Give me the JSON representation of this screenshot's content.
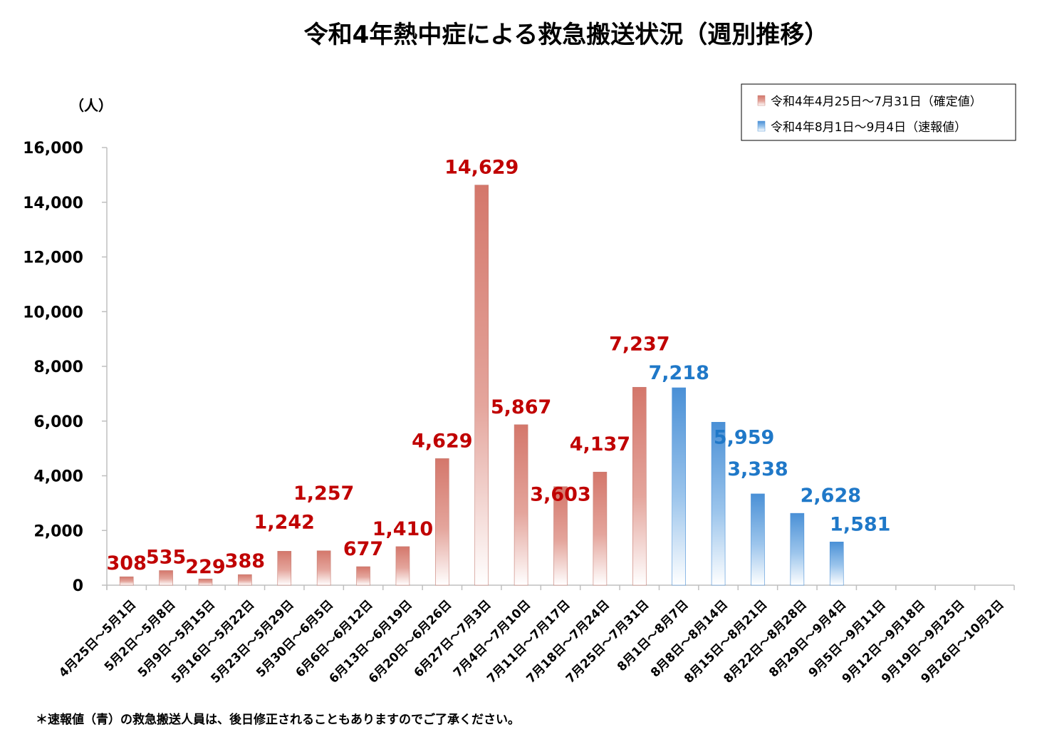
{
  "colors": {
    "confirmed_bar": "#d98b80",
    "confirmed_label": "#c00000",
    "preliminary_bar": "#5b9bd5",
    "preliminary_label": "#1f78c8",
    "axis": "#bfbfbf"
  },
  "chart_data": {
    "type": "bar",
    "title": "令和4年熱中症による救急搬送状況（週別推移）",
    "ylabel": "（人）",
    "ylim": [
      0,
      16000
    ],
    "yticks": [
      "0",
      "2,000",
      "4,000",
      "6,000",
      "8,000",
      "10,000",
      "12,000",
      "14,000",
      "16,000"
    ],
    "ytick_values": [
      0,
      2000,
      4000,
      6000,
      8000,
      10000,
      12000,
      14000,
      16000
    ],
    "categories": [
      "4月25日～5月1日",
      "5月2日～5月8日",
      "5月9日～5月15日",
      "5月16日～5月22日",
      "5月23日～5月29日",
      "5月30日～6月5日",
      "6月6日～6月12日",
      "6月13日～6月19日",
      "6月20日～6月26日",
      "6月27日～7月3日",
      "7月4日～7月10日",
      "7月11日～7月17日",
      "7月18日～7月24日",
      "7月25日～7月31日",
      "8月1日～8月7日",
      "8月8日～8月14日",
      "8月15日～8月21日",
      "8月22日～8月28日",
      "8月29日～9月4日",
      "9月5日～9月11日",
      "9月12日～9月18日",
      "9月19日～9月25日",
      "9月26日～10月2日"
    ],
    "series": [
      {
        "name": "令和4年4月25日～7月31日（確定値）",
        "kind": "confirmed",
        "values": [
          308,
          535,
          229,
          388,
          1242,
          1257,
          677,
          1410,
          4629,
          14629,
          5867,
          3603,
          4137,
          7237,
          null,
          null,
          null,
          null,
          null,
          null,
          null,
          null,
          null
        ],
        "labels": [
          "308",
          "535",
          "229",
          "388",
          "1,242",
          "1,257",
          "677",
          "1,410",
          "4,629",
          "14,629",
          "5,867",
          "3,603",
          "4,137",
          "7,237",
          null,
          null,
          null,
          null,
          null,
          null,
          null,
          null,
          null
        ]
      },
      {
        "name": "令和4年8月1日～9月4日（速報値）",
        "kind": "preliminary",
        "values": [
          null,
          null,
          null,
          null,
          null,
          null,
          null,
          null,
          null,
          null,
          null,
          null,
          null,
          null,
          7218,
          5959,
          3338,
          2628,
          1581,
          null,
          null,
          null,
          null
        ],
        "labels": [
          null,
          null,
          null,
          null,
          null,
          null,
          null,
          null,
          null,
          null,
          null,
          null,
          null,
          null,
          "7,218",
          "5,959",
          "3,338",
          "2,628",
          "1,581",
          null,
          null,
          null,
          null
        ]
      }
    ],
    "legend_position": "top-right"
  },
  "footnote": "＊速報値（青）の救急搬送人員は、後日修正されることもありますのでご了承ください。"
}
